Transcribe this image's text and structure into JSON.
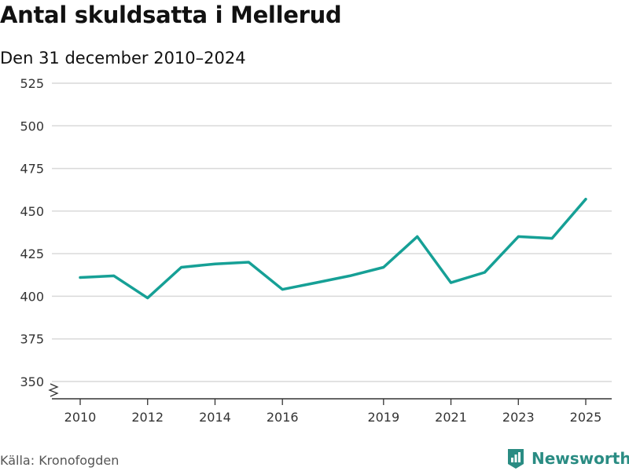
{
  "header": {
    "title": "Antal skuldsatta i Mellerud",
    "subtitle": "Den 31 december 2010–2024"
  },
  "footer": {
    "source": "Källa: Kronofogden",
    "brand": "Newsworthy"
  },
  "colors": {
    "line": "#16a096",
    "grid": "#d9d9d9",
    "axis": "#333333",
    "brand": "#2a8c83"
  },
  "chart_data": {
    "type": "line",
    "title": "Antal skuldsatta i Mellerud",
    "subtitle": "Den 31 december 2010–2024",
    "xlabel": "",
    "ylabel": "",
    "x": [
      2010,
      2011,
      2012,
      2013,
      2014,
      2015,
      2016,
      2017,
      2018,
      2019,
      2020,
      2021,
      2022,
      2023,
      2024,
      2025
    ],
    "series": [
      {
        "name": "Antal skuldsatta",
        "values": [
          411,
          412,
          399,
          417,
          419,
          420,
          404,
          408,
          412,
          417,
          435,
          408,
          414,
          435,
          434,
          457
        ]
      }
    ],
    "xticks": [
      "2010",
      "2012",
      "2014",
      "2016",
      "2019",
      "2021",
      "2023",
      "2025"
    ],
    "yticks": [
      "350",
      "375",
      "400",
      "425",
      "450",
      "475",
      "500",
      "525"
    ],
    "ylim": [
      350,
      525
    ],
    "xlim": [
      2010,
      2025
    ],
    "grid": true,
    "axis_break": true
  }
}
